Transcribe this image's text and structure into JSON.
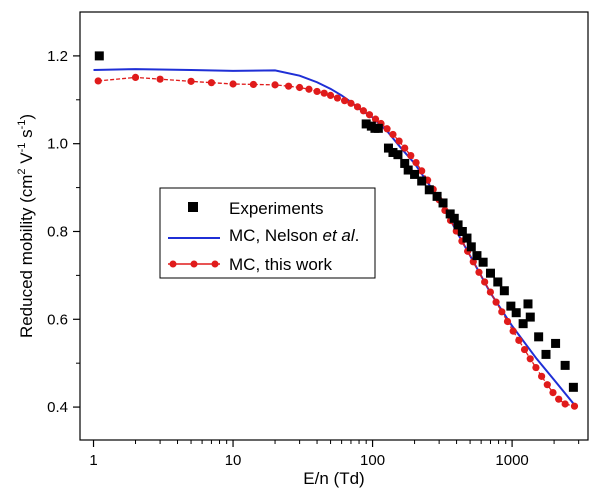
{
  "chart_data": {
    "type": "scatter",
    "xscale": "log",
    "xlim": [
      0.8,
      3500
    ],
    "ylim": [
      0.325,
      1.3
    ],
    "grid": false,
    "legend_position": "center-left",
    "xlabel": "E/n (Td)",
    "ylabel_parts": {
      "p1": "Reduced mobility (cm",
      "sup1": "2",
      "p2": " V",
      "sup2": "-1",
      "p3": " s",
      "sup3": "-1",
      "p4": ")"
    },
    "x_ticks": [
      {
        "value": 1,
        "label": "1"
      },
      {
        "value": 10,
        "label": "10"
      },
      {
        "value": 100,
        "label": "100"
      },
      {
        "value": 1000,
        "label": "1000"
      }
    ],
    "y_ticks": [
      {
        "value": 0.4,
        "label": "0.4"
      },
      {
        "value": 0.6,
        "label": "0.6"
      },
      {
        "value": 0.8,
        "label": "0.8"
      },
      {
        "value": 1.0,
        "label": "1.0"
      },
      {
        "value": 1.2,
        "label": "1.2"
      }
    ],
    "series": [
      {
        "name": "Experiments",
        "style": "square-markers",
        "color": "#000000",
        "points": [
          [
            1.1,
            1.2
          ],
          [
            90,
            1.045
          ],
          [
            98,
            1.04
          ],
          [
            104,
            1.035
          ],
          [
            110,
            1.035
          ],
          [
            130,
            0.99
          ],
          [
            140,
            0.98
          ],
          [
            152,
            0.975
          ],
          [
            170,
            0.955
          ],
          [
            180,
            0.94
          ],
          [
            200,
            0.93
          ],
          [
            225,
            0.915
          ],
          [
            255,
            0.895
          ],
          [
            290,
            0.88
          ],
          [
            320,
            0.865
          ],
          [
            360,
            0.84
          ],
          [
            385,
            0.83
          ],
          [
            410,
            0.815
          ],
          [
            440,
            0.8
          ],
          [
            475,
            0.785
          ],
          [
            510,
            0.765
          ],
          [
            560,
            0.745
          ],
          [
            620,
            0.73
          ],
          [
            700,
            0.705
          ],
          [
            790,
            0.685
          ],
          [
            880,
            0.665
          ],
          [
            980,
            0.63
          ],
          [
            1070,
            0.615
          ],
          [
            1200,
            0.59
          ],
          [
            1300,
            0.635
          ],
          [
            1350,
            0.605
          ],
          [
            1550,
            0.56
          ],
          [
            1750,
            0.52
          ],
          [
            2050,
            0.545
          ],
          [
            2400,
            0.495
          ],
          [
            2750,
            0.445
          ]
        ]
      },
      {
        "name_parts": {
          "a": "MC, Nelson ",
          "b": "et al",
          "c": "."
        },
        "style": "line",
        "color": "#1f2fd6",
        "points": [
          [
            1,
            1.168
          ],
          [
            2,
            1.17
          ],
          [
            5,
            1.168
          ],
          [
            10,
            1.166
          ],
          [
            20,
            1.167
          ],
          [
            30,
            1.155
          ],
          [
            40,
            1.14
          ],
          [
            50,
            1.125
          ],
          [
            60,
            1.11
          ],
          [
            70,
            1.095
          ],
          [
            80,
            1.08
          ],
          [
            100,
            1.06
          ],
          [
            130,
            1.025
          ],
          [
            160,
            0.99
          ],
          [
            200,
            0.955
          ],
          [
            250,
            0.91
          ],
          [
            300,
            0.875
          ],
          [
            400,
            0.8
          ],
          [
            500,
            0.745
          ],
          [
            700,
            0.66
          ],
          [
            1000,
            0.585
          ],
          [
            1500,
            0.51
          ],
          [
            2000,
            0.462
          ],
          [
            2800,
            0.405
          ]
        ]
      },
      {
        "name": "MC, this work",
        "style": "line-circle-markers",
        "color": "#e01b1b",
        "points": [
          [
            1.08,
            1.143
          ],
          [
            2,
            1.151
          ],
          [
            3,
            1.147
          ],
          [
            5,
            1.142
          ],
          [
            7,
            1.139
          ],
          [
            10,
            1.136
          ],
          [
            14,
            1.135
          ],
          [
            20,
            1.134
          ],
          [
            25,
            1.131
          ],
          [
            30,
            1.128
          ],
          [
            35,
            1.124
          ],
          [
            40,
            1.119
          ],
          [
            45,
            1.115
          ],
          [
            50,
            1.11
          ],
          [
            56,
            1.104
          ],
          [
            63,
            1.098
          ],
          [
            70,
            1.092
          ],
          [
            78,
            1.084
          ],
          [
            86,
            1.075
          ],
          [
            95,
            1.066
          ],
          [
            105,
            1.056
          ],
          [
            115,
            1.046
          ],
          [
            127,
            1.034
          ],
          [
            140,
            1.021
          ],
          [
            155,
            1.006
          ],
          [
            170,
            0.99
          ],
          [
            188,
            0.973
          ],
          [
            205,
            0.957
          ],
          [
            225,
            0.938
          ],
          [
            248,
            0.917
          ],
          [
            272,
            0.896
          ],
          [
            300,
            0.872
          ],
          [
            330,
            0.848
          ],
          [
            362,
            0.825
          ],
          [
            398,
            0.801
          ],
          [
            437,
            0.778
          ],
          [
            480,
            0.755
          ],
          [
            527,
            0.731
          ],
          [
            579,
            0.707
          ],
          [
            636,
            0.685
          ],
          [
            699,
            0.662
          ],
          [
            768,
            0.639
          ],
          [
            844,
            0.617
          ],
          [
            927,
            0.595
          ],
          [
            1018,
            0.573
          ],
          [
            1118,
            0.552
          ],
          [
            1228,
            0.531
          ],
          [
            1349,
            0.51
          ],
          [
            1482,
            0.49
          ],
          [
            1628,
            0.47
          ],
          [
            1788,
            0.451
          ],
          [
            1964,
            0.433
          ],
          [
            2157,
            0.418
          ],
          [
            2400,
            0.407
          ],
          [
            2800,
            0.402
          ]
        ]
      }
    ]
  }
}
